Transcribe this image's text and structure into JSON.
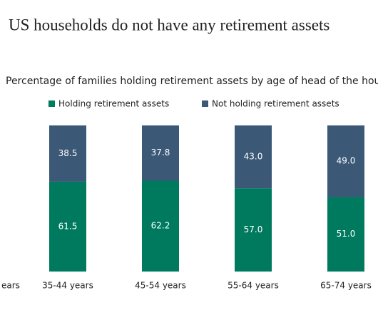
{
  "chart_data": {
    "type": "stacked-bar",
    "title": "US households do not have any retirement assets",
    "subtitle": "Percentage of families holding retirement assets by age of head of the household",
    "categories": [
      "ears",
      "35-44 years",
      "45-54 years",
      "55-64 years",
      "65-74 years"
    ],
    "series": [
      {
        "name": "Holding retirement assets",
        "color": "#007a5e",
        "values": [
          null,
          61.5,
          62.2,
          57,
          51
        ],
        "value_labels": [
          null,
          "61.5",
          "62.2",
          "57.0",
          "51.0"
        ]
      },
      {
        "name": "Not holding retirement assets",
        "color": "#3b5877",
        "values": [
          null,
          38.5,
          37.8,
          43,
          49
        ],
        "value_labels": [
          null,
          "38.5",
          "37.8",
          "43.0",
          "49.0"
        ]
      }
    ],
    "ylim": [
      0,
      100
    ]
  }
}
